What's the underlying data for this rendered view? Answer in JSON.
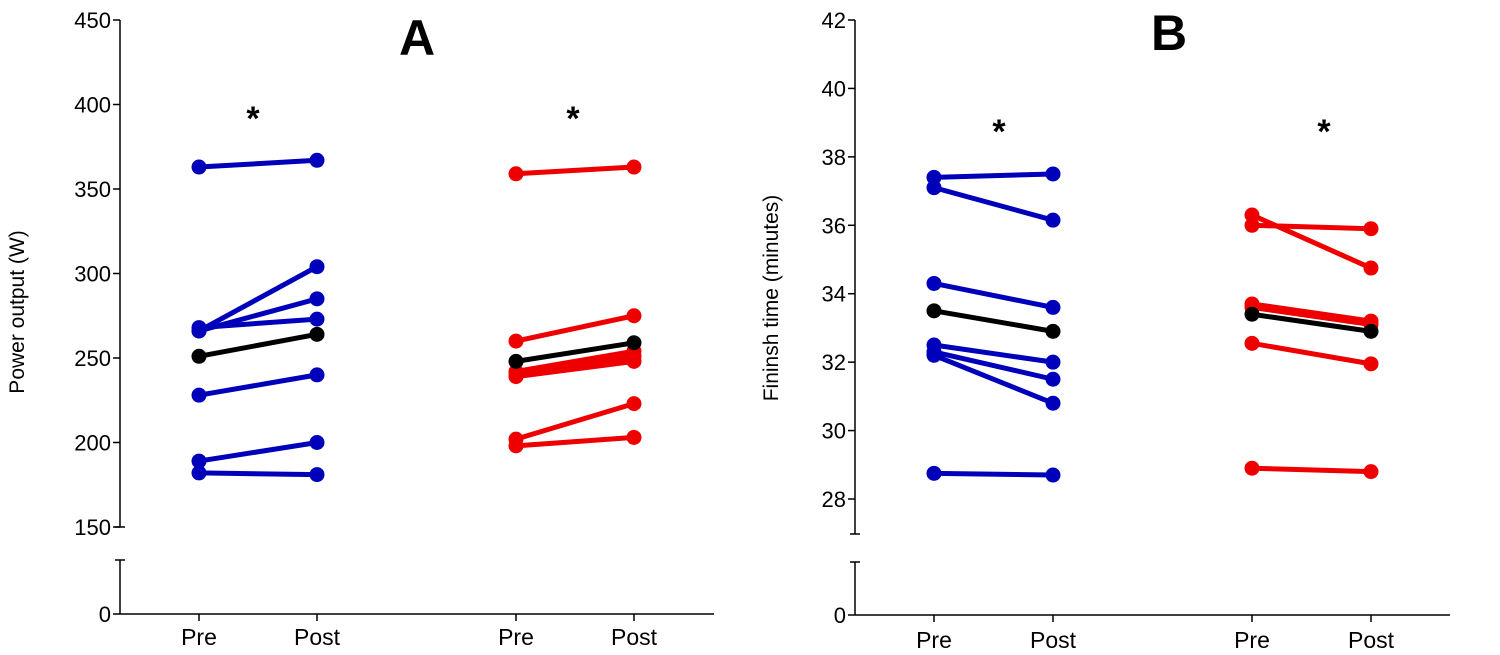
{
  "chart_data": [
    {
      "type": "line",
      "panel_label": "A",
      "title": "",
      "xlabel": "",
      "ylabel": "Power output (W)",
      "ylim": [
        150,
        450
      ],
      "broken_axis_zero": true,
      "yticks": [
        450,
        400,
        350,
        300,
        250,
        200,
        150
      ],
      "zero_label": "0",
      "grid": false,
      "categories": [
        "Pre",
        "Post",
        "Pre",
        "Post"
      ],
      "significance_markers": [
        "*",
        "*"
      ],
      "colors": {
        "group1": "#0000bb",
        "group2": "#ee0000",
        "mean": "#000000"
      },
      "groups": [
        {
          "name": "group1",
          "color": "#0000bb",
          "series": [
            {
              "name": "subject-1",
              "values": [
                363,
                367
              ]
            },
            {
              "name": "subject-2",
              "values": [
                266,
                304
              ]
            },
            {
              "name": "subject-3",
              "values": [
                266,
                285
              ]
            },
            {
              "name": "subject-4",
              "values": [
                268,
                273
              ]
            },
            {
              "name": "subject-5",
              "values": [
                228,
                240
              ]
            },
            {
              "name": "subject-6",
              "values": [
                189,
                200
              ]
            },
            {
              "name": "subject-7",
              "values": [
                182,
                181
              ]
            }
          ],
          "mean": {
            "name": "mean",
            "values": [
              251,
              264
            ]
          }
        },
        {
          "name": "group2",
          "color": "#ee0000",
          "series": [
            {
              "name": "subject-1",
              "values": [
                359,
                363
              ]
            },
            {
              "name": "subject-2",
              "values": [
                260,
                275
              ]
            },
            {
              "name": "subject-3",
              "values": [
                242,
                254
              ]
            },
            {
              "name": "subject-4",
              "values": [
                240,
                251
              ]
            },
            {
              "name": "subject-5",
              "values": [
                239,
                248
              ]
            },
            {
              "name": "subject-6",
              "values": [
                202,
                223
              ]
            },
            {
              "name": "subject-7",
              "values": [
                198,
                203
              ]
            }
          ],
          "mean": {
            "name": "mean",
            "values": [
              248,
              259
            ]
          }
        }
      ]
    },
    {
      "type": "line",
      "panel_label": "B",
      "title": "",
      "xlabel": "",
      "ylabel": "Fininsh time (minutes)",
      "ylim": [
        27,
        42
      ],
      "broken_axis_zero": true,
      "yticks": [
        42,
        40,
        38,
        36,
        34,
        32,
        30,
        28
      ],
      "zero_label": "0",
      "grid": false,
      "categories": [
        "Pre",
        "Post",
        "Pre",
        "Post"
      ],
      "significance_markers": [
        "*",
        "*"
      ],
      "colors": {
        "group1": "#0000bb",
        "group2": "#ee0000",
        "mean": "#000000"
      },
      "groups": [
        {
          "name": "group1",
          "color": "#0000bb",
          "series": [
            {
              "name": "subject-1",
              "values": [
                37.4,
                37.5
              ]
            },
            {
              "name": "subject-2",
              "values": [
                37.1,
                36.15
              ]
            },
            {
              "name": "subject-3",
              "values": [
                34.3,
                33.6
              ]
            },
            {
              "name": "subject-4",
              "values": [
                32.5,
                32.0
              ]
            },
            {
              "name": "subject-5",
              "values": [
                32.3,
                31.5
              ]
            },
            {
              "name": "subject-6",
              "values": [
                32.2,
                30.8
              ]
            },
            {
              "name": "subject-7",
              "values": [
                28.75,
                28.7
              ]
            }
          ],
          "mean": {
            "name": "mean",
            "values": [
              33.5,
              32.9
            ]
          }
        },
        {
          "name": "group2",
          "color": "#ee0000",
          "series": [
            {
              "name": "subject-1",
              "values": [
                36.3,
                34.75
              ]
            },
            {
              "name": "subject-2",
              "values": [
                36.0,
                35.9
              ]
            },
            {
              "name": "subject-3",
              "values": [
                33.7,
                33.2
              ]
            },
            {
              "name": "subject-4",
              "values": [
                33.6,
                33.1
              ]
            },
            {
              "name": "subject-5",
              "values": [
                32.55,
                31.95
              ]
            },
            {
              "name": "subject-6",
              "values": [
                28.9,
                28.8
              ]
            }
          ],
          "mean": {
            "name": "mean",
            "values": [
              33.4,
              32.9
            ]
          }
        }
      ]
    }
  ]
}
